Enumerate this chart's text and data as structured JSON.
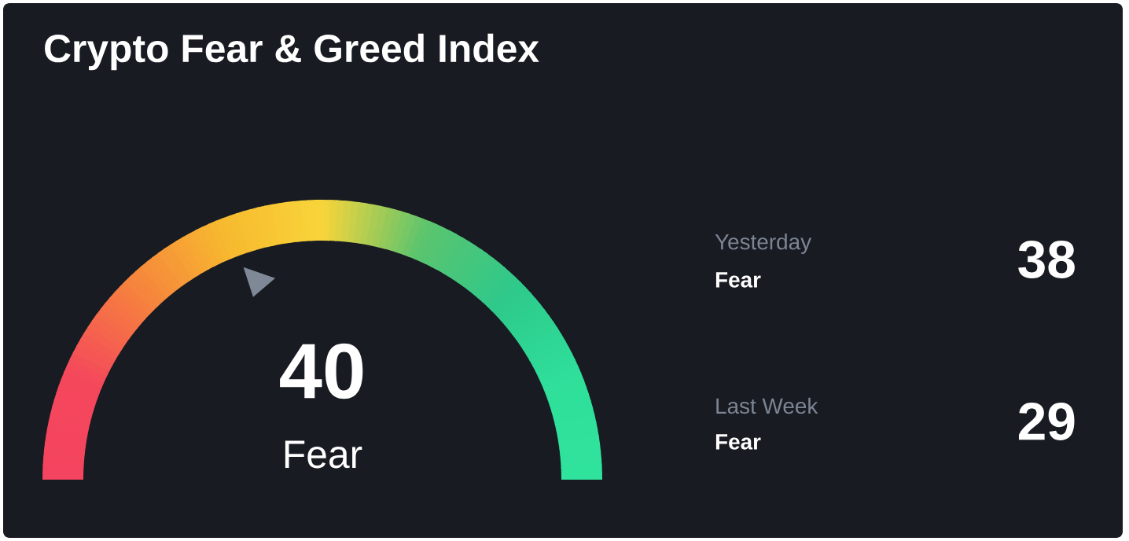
{
  "chart_data": {
    "type": "other",
    "title": "Crypto Fear & Greed Index",
    "categories": [
      null,
      "Yesterday",
      "Last Week"
    ],
    "values": [
      40,
      38,
      29
    ],
    "value_labels": [
      "40",
      "38",
      "29"
    ],
    "annotations": [
      "Fear",
      "Fear",
      "Fear"
    ]
  }
}
